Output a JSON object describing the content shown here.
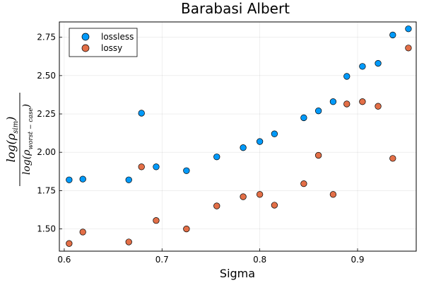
{
  "chart_data": {
    "type": "scatter",
    "title": "Barabasi Albert",
    "xlabel": "Sigma",
    "ylabel": {
      "numerator_base": "log(",
      "numerator_sym": "ρ",
      "numerator_sub": "sim",
      "numerator_close": ")",
      "denominator_base": "log(",
      "denominator_sym": "ρ",
      "denominator_sub": "worst − case",
      "denominator_close": ")"
    },
    "xlim": [
      0.595,
      0.96
    ],
    "ylim": [
      1.355,
      2.85
    ],
    "x_ticks": [
      0.6,
      0.7,
      0.8,
      0.9
    ],
    "x_tick_labels": [
      "0.6",
      "0.7",
      "0.8",
      "0.9"
    ],
    "y_ticks": [
      1.5,
      1.75,
      2.0,
      2.25,
      2.5,
      2.75
    ],
    "y_tick_labels": [
      "1.50",
      "1.75",
      "2.00",
      "2.25",
      "2.50",
      "2.75"
    ],
    "grid": true,
    "legend_position": "top-left",
    "series": [
      {
        "name": "lossless",
        "color": "#009AFA",
        "x": [
          0.605,
          0.619,
          0.666,
          0.679,
          0.694,
          0.725,
          0.756,
          0.783,
          0.8,
          0.815,
          0.845,
          0.86,
          0.875,
          0.889,
          0.905,
          0.921,
          0.936,
          0.952
        ],
        "y": [
          1.82,
          1.825,
          1.82,
          2.255,
          1.905,
          1.88,
          1.97,
          2.03,
          2.07,
          2.12,
          2.225,
          2.27,
          2.33,
          2.495,
          2.56,
          2.58,
          2.765,
          2.805
        ]
      },
      {
        "name": "lossy",
        "color": "#E36F47",
        "x": [
          0.605,
          0.619,
          0.666,
          0.679,
          0.694,
          0.725,
          0.756,
          0.783,
          0.8,
          0.815,
          0.845,
          0.86,
          0.875,
          0.889,
          0.905,
          0.921,
          0.936,
          0.952
        ],
        "y": [
          1.405,
          1.48,
          1.415,
          1.905,
          1.555,
          1.5,
          1.65,
          1.71,
          1.725,
          1.655,
          1.795,
          1.98,
          1.725,
          2.315,
          2.33,
          2.3,
          1.96,
          2.68
        ]
      }
    ]
  }
}
